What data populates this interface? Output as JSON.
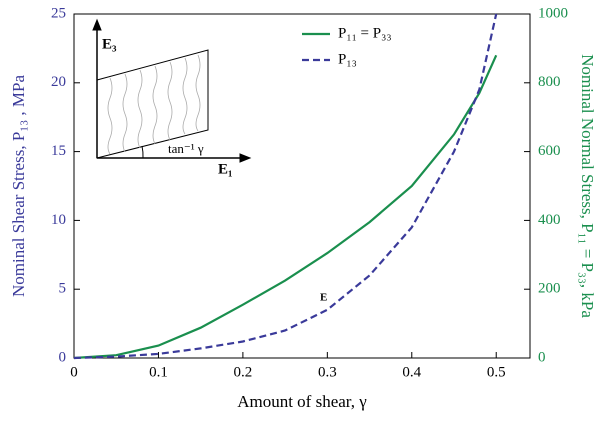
{
  "chart_data": {
    "type": "line",
    "x_label": "Amount of shear, γ",
    "y_label": "Nominal Shear Stress, P₁₃ , MPa",
    "y2_label": "Nominal Normal Stress, P₁₁ = P₃₃, kPa",
    "x": [
      0,
      0.05,
      0.1,
      0.15,
      0.2,
      0.25,
      0.3,
      0.35,
      0.4,
      0.45,
      0.48,
      0.5
    ],
    "series": [
      {
        "name": "P₁₁ = P₃₃",
        "color": "#1a8f4e",
        "axis": "y2",
        "dash": false,
        "values": [
          0,
          8,
          36,
          88,
          155,
          225,
          305,
          395,
          500,
          650,
          770,
          880
        ]
      },
      {
        "name": "P₁₃",
        "color": "#3a3a9a",
        "axis": "y",
        "dash": true,
        "values": [
          0,
          0.1,
          0.3,
          0.7,
          1.2,
          2.0,
          3.5,
          6.0,
          9.5,
          15,
          19.5,
          25
        ]
      }
    ],
    "xlim": [
      0,
      0.54
    ],
    "xticks": [
      0,
      0.1,
      0.2,
      0.3,
      0.4,
      0.5
    ],
    "ylim": [
      0,
      25
    ],
    "yticks": [
      0,
      5,
      10,
      15,
      20,
      25
    ],
    "y2lim": [
      0,
      1000
    ],
    "y2ticks": [
      0,
      200,
      400,
      600,
      800,
      1000
    ],
    "y_color": "#3a3a9a",
    "y2_color": "#1a8f4e",
    "annotations": [
      "E",
      "E₃",
      "E₁",
      "tan⁻¹ γ"
    ]
  }
}
